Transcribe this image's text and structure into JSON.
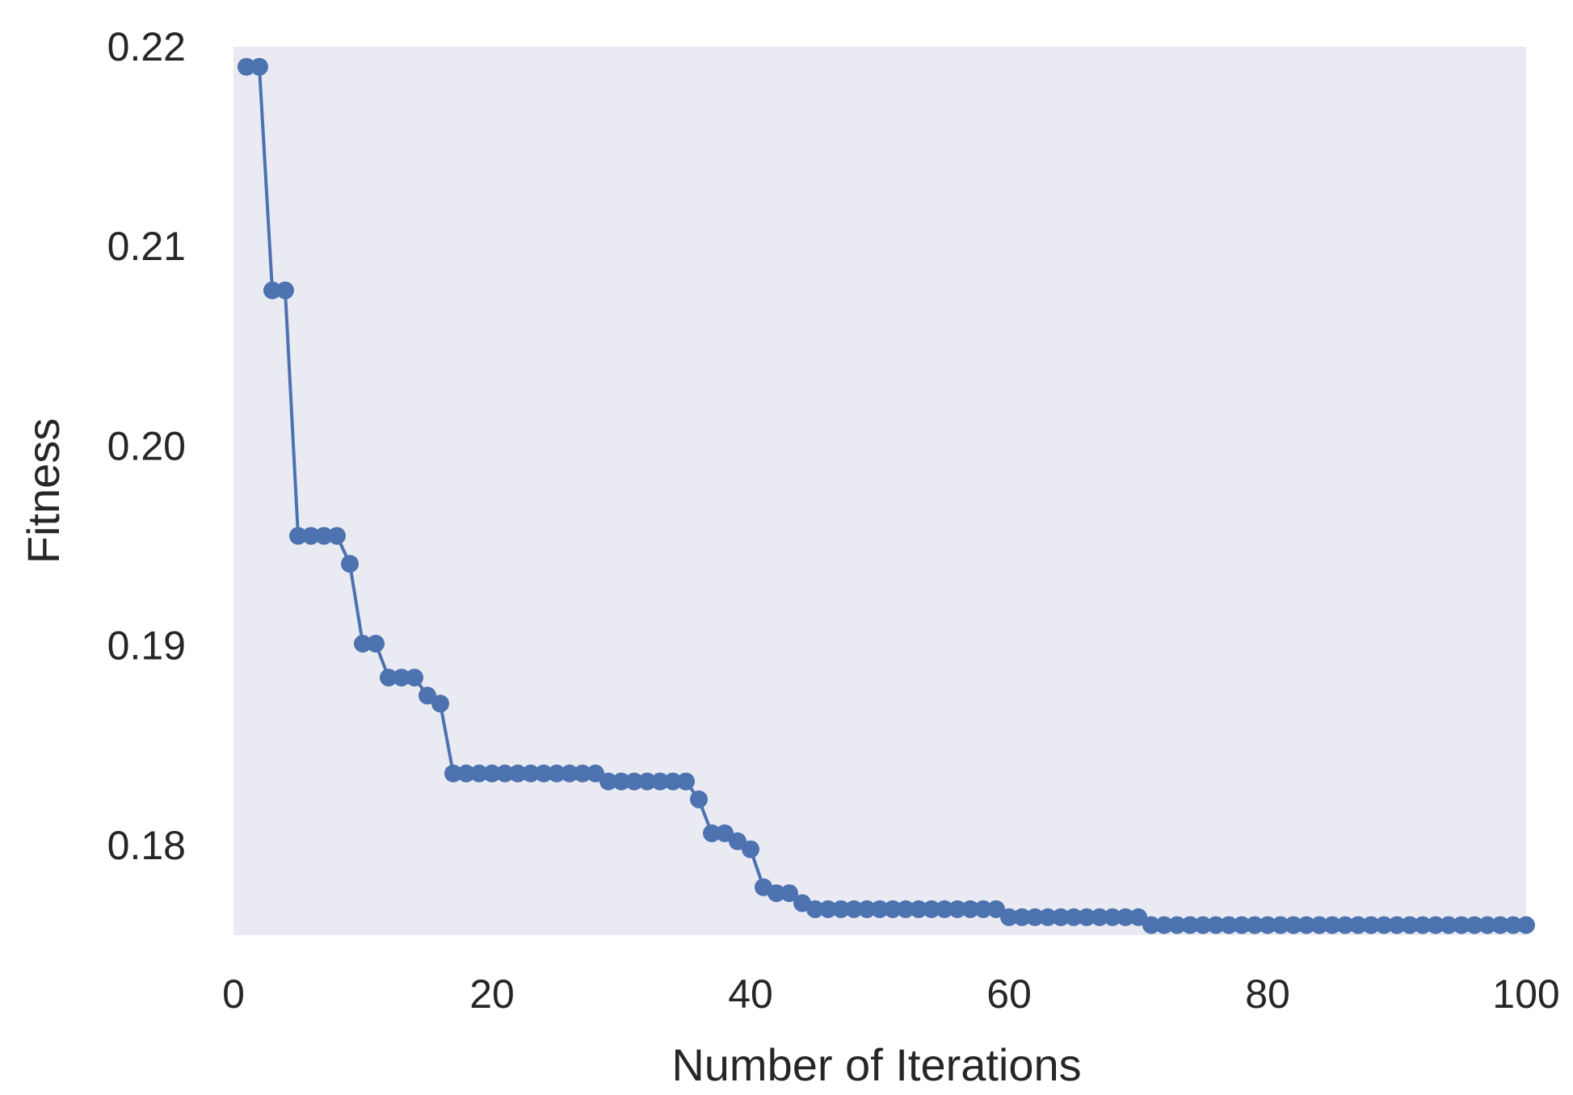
{
  "chart_data": {
    "type": "line",
    "xlabel": "Number of Iterations",
    "ylabel": "Fitness",
    "xlim": [
      0,
      100
    ],
    "ylim": [
      0.1755,
      0.22
    ],
    "xticks": [
      0,
      20,
      40,
      60,
      80,
      100
    ],
    "yticks": [
      0.18,
      0.19,
      0.2,
      0.21,
      0.22
    ],
    "xtick_labels": [
      "0",
      "20",
      "40",
      "60",
      "80",
      "100"
    ],
    "ytick_labels": [
      "0.18",
      "0.19",
      "0.20",
      "0.21",
      "0.22"
    ],
    "grid": false,
    "colors": {
      "plot_bg": "#eaeaf2",
      "line": "#4c72b0",
      "text": "#262626"
    },
    "series": [
      {
        "x": [
          1,
          2,
          3,
          4,
          5,
          6,
          7,
          8,
          9,
          10,
          11,
          12,
          13,
          14,
          15,
          16,
          17,
          18,
          19,
          20,
          21,
          22,
          23,
          24,
          25,
          26,
          27,
          28,
          29,
          30,
          31,
          32,
          33,
          34,
          35,
          36,
          37,
          38,
          39,
          40,
          41,
          42,
          43,
          44,
          45,
          46,
          47,
          48,
          49,
          50,
          51,
          52,
          53,
          54,
          55,
          56,
          57,
          58,
          59,
          60,
          61,
          62,
          63,
          64,
          65,
          66,
          67,
          68,
          69,
          70,
          71,
          72,
          73,
          74,
          75,
          76,
          77,
          78,
          79,
          80,
          81,
          82,
          83,
          84,
          85,
          86,
          87,
          88,
          89,
          90,
          91,
          92,
          93,
          94,
          95,
          96,
          97,
          98,
          99,
          100
        ],
        "values": [
          0.219,
          0.219,
          0.2078,
          0.2078,
          0.1955,
          0.1955,
          0.1955,
          0.1955,
          0.1941,
          0.1901,
          0.1901,
          0.1884,
          0.1884,
          0.1884,
          0.1875,
          0.1871,
          0.1836,
          0.1836,
          0.1836,
          0.1836,
          0.1836,
          0.1836,
          0.1836,
          0.1836,
          0.1836,
          0.1836,
          0.1836,
          0.1836,
          0.1832,
          0.1832,
          0.1832,
          0.1832,
          0.1832,
          0.1832,
          0.1832,
          0.1823,
          0.1806,
          0.1806,
          0.1802,
          0.1798,
          0.1779,
          0.1776,
          0.1776,
          0.1771,
          0.1768,
          0.1768,
          0.1768,
          0.1768,
          0.1768,
          0.1768,
          0.1768,
          0.1768,
          0.1768,
          0.1768,
          0.1768,
          0.1768,
          0.1768,
          0.1768,
          0.1768,
          0.1764,
          0.1764,
          0.1764,
          0.1764,
          0.1764,
          0.1764,
          0.1764,
          0.1764,
          0.1764,
          0.1764,
          0.1764,
          0.176,
          0.176,
          0.176,
          0.176,
          0.176,
          0.176,
          0.176,
          0.176,
          0.176,
          0.176,
          0.176,
          0.176,
          0.176,
          0.176,
          0.176,
          0.176,
          0.176,
          0.176,
          0.176,
          0.176,
          0.176,
          0.176,
          0.176,
          0.176,
          0.176,
          0.176,
          0.176,
          0.176,
          0.176,
          0.176
        ]
      }
    ]
  }
}
